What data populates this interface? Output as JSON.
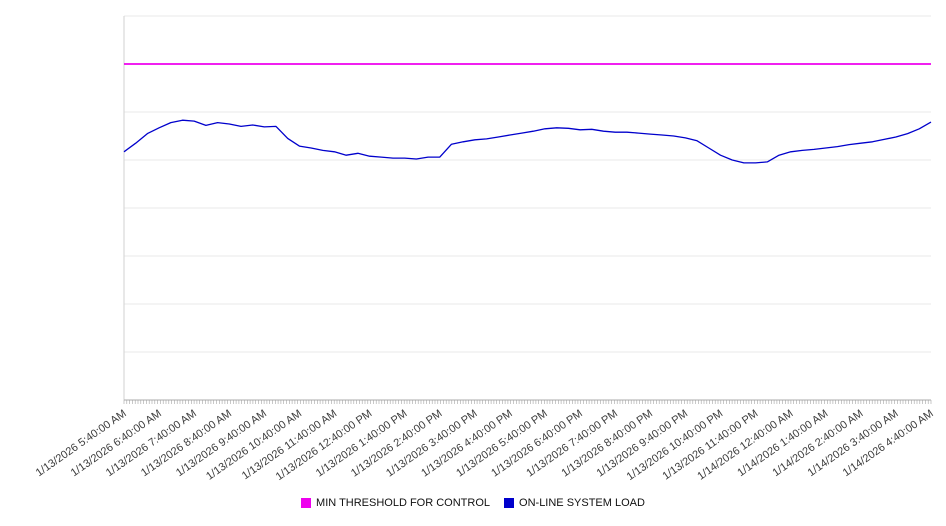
{
  "chart_data": {
    "type": "line",
    "title": "",
    "xlabel": "",
    "ylabel": "",
    "ylim": [
      0,
      8
    ],
    "grid": true,
    "legend_position": "bottom",
    "x_label_rotation": -35,
    "x_labels": [
      "1/13/2026 5:40:00 AM",
      "1/13/2026 6:40:00 AM",
      "1/13/2026 7:40:00 AM",
      "1/13/2026 8:40:00 AM",
      "1/13/2026 9:40:00 AM",
      "1/13/2026 10:40:00 AM",
      "1/13/2026 11:40:00 AM",
      "1/13/2026 12:40:00 PM",
      "1/13/2026 1:40:00 PM",
      "1/13/2026 2:40:00 PM",
      "1/13/2026 3:40:00 PM",
      "1/13/2026 4:40:00 PM",
      "1/13/2026 5:40:00 PM",
      "1/13/2026 6:40:00 PM",
      "1/13/2026 7:40:00 PM",
      "1/13/2026 8:40:00 PM",
      "1/13/2026 9:40:00 PM",
      "1/13/2026 10:40:00 PM",
      "1/13/2026 11:40:00 PM",
      "1/14/2026 12:40:00 AM",
      "1/14/2026 1:40:00 AM",
      "1/14/2026 2:40:00 AM",
      "1/14/2026 3:40:00 AM",
      "1/14/2026 4:40:00 AM"
    ],
    "series": [
      {
        "name": "MIN THRESHOLD FOR CONTROL",
        "color": "#ee00ee",
        "style": "constant",
        "value": 7.0
      },
      {
        "name": "ON-LINE SYSTEM LOAD",
        "color": "#0000cc",
        "style": "line",
        "sample_interval_minutes": 20,
        "values": [
          5.17,
          5.35,
          5.55,
          5.67,
          5.78,
          5.83,
          5.81,
          5.72,
          5.78,
          5.75,
          5.7,
          5.73,
          5.69,
          5.7,
          5.45,
          5.29,
          5.25,
          5.2,
          5.17,
          5.1,
          5.14,
          5.08,
          5.06,
          5.04,
          5.04,
          5.02,
          5.06,
          5.06,
          5.33,
          5.38,
          5.42,
          5.44,
          5.48,
          5.52,
          5.56,
          5.6,
          5.65,
          5.67,
          5.66,
          5.63,
          5.64,
          5.6,
          5.58,
          5.58,
          5.56,
          5.54,
          5.52,
          5.5,
          5.46,
          5.4,
          5.25,
          5.1,
          5.0,
          4.94,
          4.94,
          4.96,
          5.1,
          5.17,
          5.2,
          5.22,
          5.25,
          5.28,
          5.32,
          5.35,
          5.38,
          5.43,
          5.48,
          5.55,
          5.65,
          5.79
        ]
      }
    ]
  }
}
